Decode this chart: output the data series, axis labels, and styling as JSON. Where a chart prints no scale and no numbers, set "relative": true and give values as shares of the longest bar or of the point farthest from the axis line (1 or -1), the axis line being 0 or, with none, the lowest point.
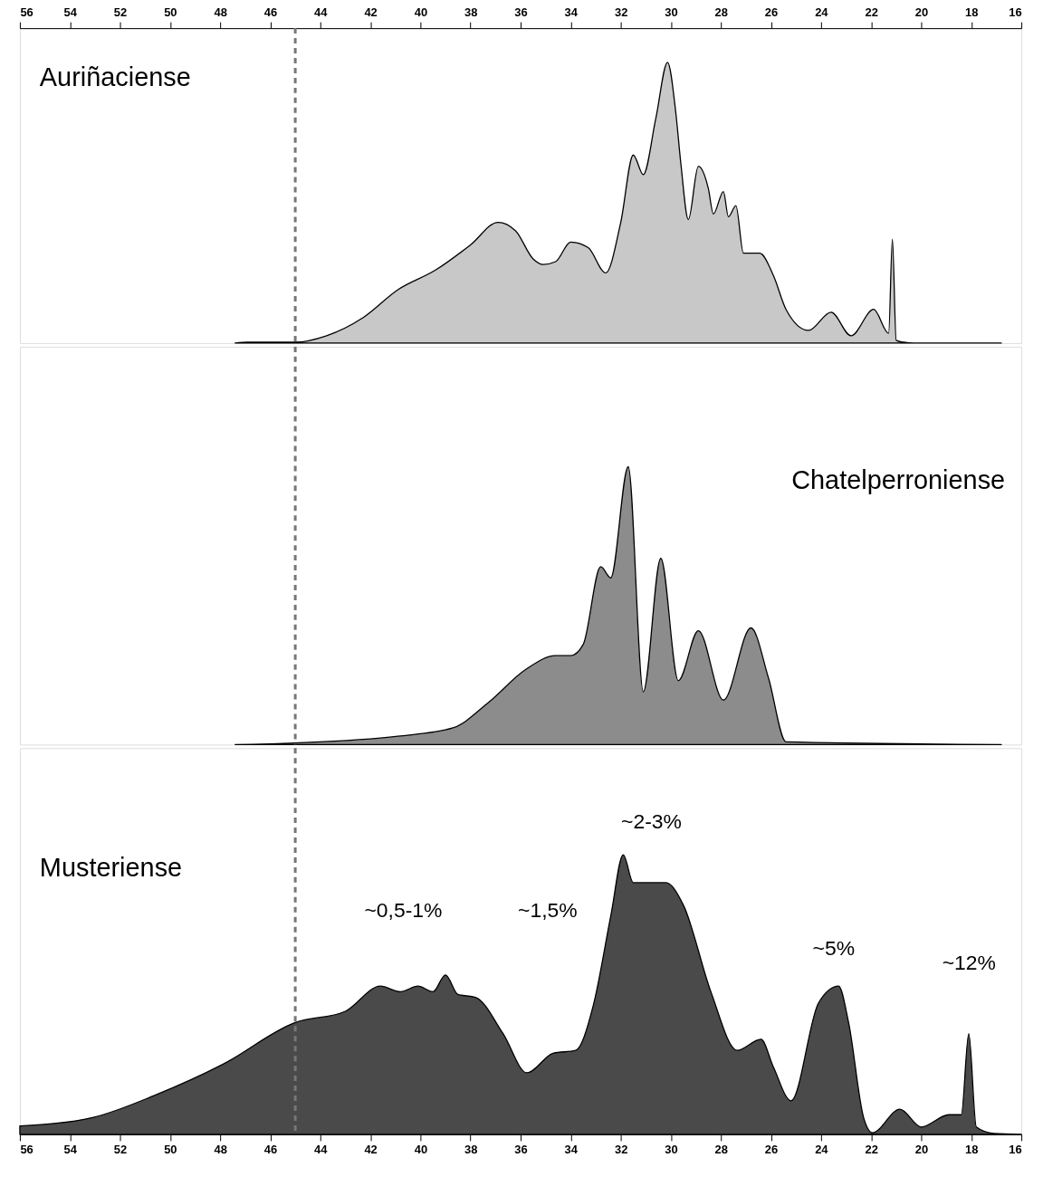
{
  "chart_data": [
    {
      "type": "area",
      "relative": true,
      "xlim": [
        56,
        16
      ],
      "xticks": [
        56,
        54,
        52,
        50,
        48,
        46,
        44,
        42,
        40,
        38,
        36,
        34,
        32,
        30,
        28,
        26,
        24,
        22,
        20,
        18,
        16
      ],
      "series": [
        {
          "name": "Auriñaciense",
          "color": "#c8c8c8",
          "x": [
            47.4,
            46.9,
            45.0,
            43.75,
            42.3,
            40.9,
            39.4,
            38.0,
            36.9,
            36.2,
            35.5,
            35.1,
            34.6,
            34.0,
            33.3,
            32.6,
            32.0,
            31.5,
            31.1,
            30.6,
            30.13,
            29.8,
            29.6,
            29.3,
            28.9,
            28.5,
            28.3,
            27.9,
            27.7,
            27.4,
            27.1,
            26.45,
            25.9,
            25.4,
            24.5,
            23.6,
            22.8,
            21.9,
            21.3,
            21.15,
            21.0,
            20.7,
            20.3,
            16.8
          ],
          "values": [
            0,
            0.003,
            0.003,
            0.026,
            0.09,
            0.19,
            0.26,
            0.35,
            0.43,
            0.4,
            0.3,
            0.28,
            0.29,
            0.36,
            0.34,
            0.25,
            0.43,
            0.67,
            0.6,
            0.8,
            1,
            0.82,
            0.64,
            0.44,
            0.63,
            0.55,
            0.46,
            0.54,
            0.45,
            0.49,
            0.32,
            0.32,
            0.24,
            0.12,
            0.045,
            0.11,
            0.026,
            0.12,
            0.035,
            0.37,
            0.01,
            0.003,
            0,
            0
          ]
        }
      ],
      "ref_lines": [
        {
          "axis": "x",
          "value": 45,
          "color": "#777777",
          "line_style": "dashed"
        }
      ]
    },
    {
      "type": "area",
      "relative": true,
      "xlim": [
        56,
        16
      ],
      "tick_labels": false,
      "series": [
        {
          "name": "Chatelperroniense",
          "color": "#8c8c8c",
          "x": [
            47.4,
            45.0,
            40.9,
            38.7,
            37.3,
            35.8,
            34.6,
            34.0,
            33.5,
            32.8,
            32.4,
            31.7,
            31.1,
            30.4,
            29.7,
            28.9,
            27.9,
            26.8,
            26.1,
            25.4,
            16.8
          ],
          "values": [
            0,
            0.006,
            0.03,
            0.06,
            0.15,
            0.27,
            0.32,
            0.32,
            0.36,
            0.64,
            0.6,
            1,
            0.19,
            0.67,
            0.23,
            0.41,
            0.16,
            0.42,
            0.24,
            0.01,
            0
          ]
        }
      ],
      "ref_lines": [
        {
          "axis": "x",
          "value": 45,
          "color": "#777777",
          "line_style": "dashed"
        }
      ]
    },
    {
      "type": "area",
      "relative": true,
      "xlim": [
        56,
        16
      ],
      "xticks": [
        56,
        54,
        52,
        50,
        48,
        46,
        44,
        42,
        40,
        38,
        36,
        34,
        32,
        30,
        28,
        26,
        24,
        22,
        20,
        18,
        16
      ],
      "series": [
        {
          "name": "Musteriense",
          "color": "#4a4a4a",
          "x": [
            56,
            53.1,
            50.6,
            47.9,
            45.0,
            43.0,
            41.6,
            40.8,
            40.1,
            39.5,
            39.0,
            38.5,
            37.8,
            36.7,
            35.75,
            34.7,
            33.8,
            33.1,
            32.4,
            31.9,
            31.5,
            31.0,
            30.2,
            29.5,
            28.4,
            27.35,
            26.4,
            25.9,
            25.2,
            24.1,
            23.3,
            22.9,
            22.3,
            21.95,
            20.85,
            20.0,
            18.9,
            18.4,
            18.1,
            17.8,
            17.1,
            16.0
          ],
          "values": [
            0.03,
            0.06,
            0.14,
            0.25,
            0.4,
            0.44,
            0.53,
            0.51,
            0.53,
            0.51,
            0.57,
            0.5,
            0.49,
            0.36,
            0.22,
            0.29,
            0.3,
            0.46,
            0.78,
            1,
            0.9,
            0.9,
            0.9,
            0.82,
            0.51,
            0.3,
            0.34,
            0.24,
            0.12,
            0.47,
            0.53,
            0.4,
            0.06,
            0.006,
            0.09,
            0.026,
            0.07,
            0.07,
            0.36,
            0.026,
            0.003,
            0
          ]
        }
      ],
      "ref_lines": [
        {
          "axis": "x",
          "value": 45,
          "color": "#777777",
          "line_style": "dashed"
        }
      ],
      "annotations": [
        "~0,5-1%",
        "~1,5%",
        "~2-3%",
        "~5%",
        "~12%"
      ]
    }
  ]
}
